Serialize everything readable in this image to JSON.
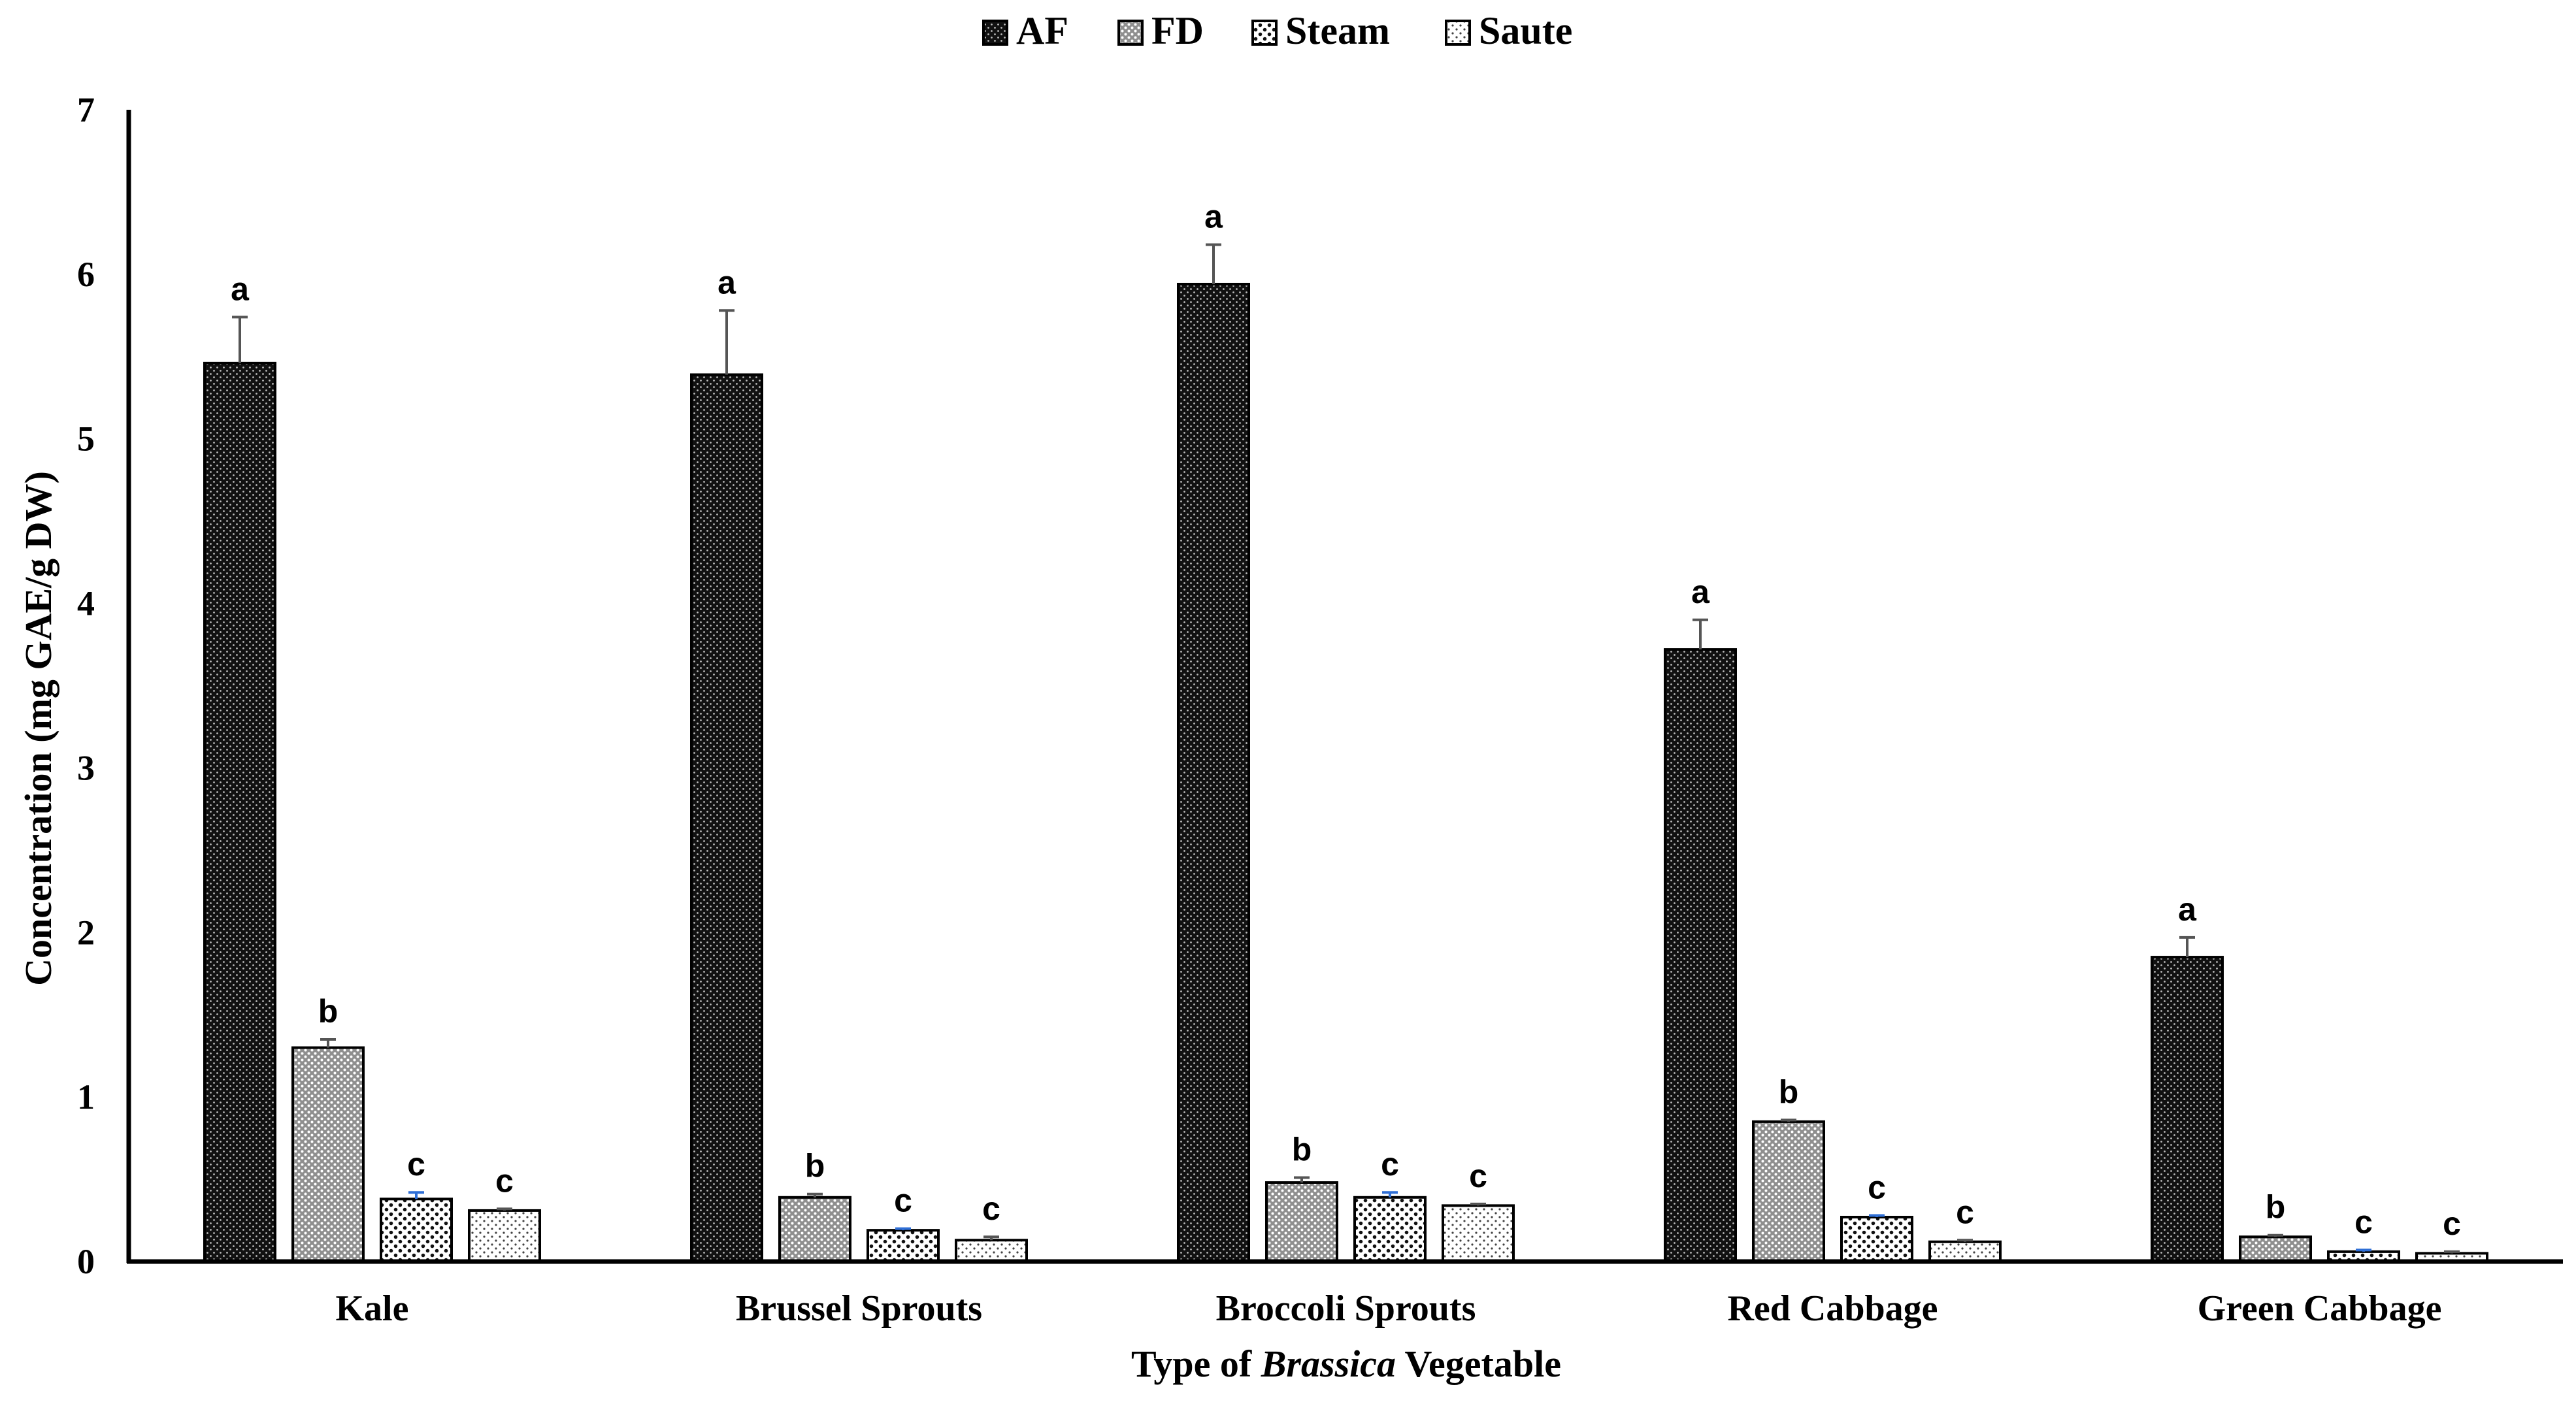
{
  "chart_data": {
    "type": "bar",
    "title": "",
    "xlabel": {
      "prefix": "Type of ",
      "italic": "Brassica",
      "suffix": " Vegetable"
    },
    "ylabel": "Concentration (mg GAE/g DW)",
    "ylim": [
      0,
      7
    ],
    "yticks": [
      0,
      1,
      2,
      3,
      4,
      5,
      6,
      7
    ],
    "grid": false,
    "legend_position": "top-center",
    "categories": [
      "Kale",
      "Brussel Sprouts",
      "Broccoli Sprouts",
      "Red Cabbage",
      "Green Cabbage"
    ],
    "series": [
      {
        "name": "AF",
        "pattern": "dense-dots",
        "values": [
          5.46,
          5.39,
          5.94,
          3.72,
          1.85
        ],
        "errors": [
          0.28,
          0.39,
          0.24,
          0.18,
          0.12
        ],
        "letters": [
          "a",
          "a",
          "a",
          "a",
          "a"
        ]
      },
      {
        "name": "FD",
        "pattern": "grid-dots",
        "values": [
          1.3,
          0.39,
          0.48,
          0.85,
          0.15
        ],
        "errors": [
          0.05,
          0.02,
          0.03,
          0.01,
          0.01
        ],
        "letters": [
          "b",
          "b",
          "b",
          "b",
          "b"
        ]
      },
      {
        "name": "Steam",
        "pattern": "sparse-dots",
        "values": [
          0.38,
          0.19,
          0.39,
          0.27,
          0.06
        ],
        "errors": [
          0.04,
          0.01,
          0.03,
          0.01,
          0.01
        ],
        "letters": [
          "c",
          "c",
          "c",
          "c",
          "c"
        ]
      },
      {
        "name": "Saute",
        "pattern": "fine-dots",
        "values": [
          0.31,
          0.13,
          0.34,
          0.12,
          0.05
        ],
        "errors": [
          0.01,
          0.02,
          0.01,
          0.01,
          0.01
        ],
        "letters": [
          "c",
          "c",
          "c",
          "c",
          "c"
        ]
      }
    ],
    "colors": {
      "axis": "#000000",
      "bar_outline": "#000000",
      "error_bar": "#555555",
      "steam_error_bar": "#2f6fd6"
    }
  }
}
